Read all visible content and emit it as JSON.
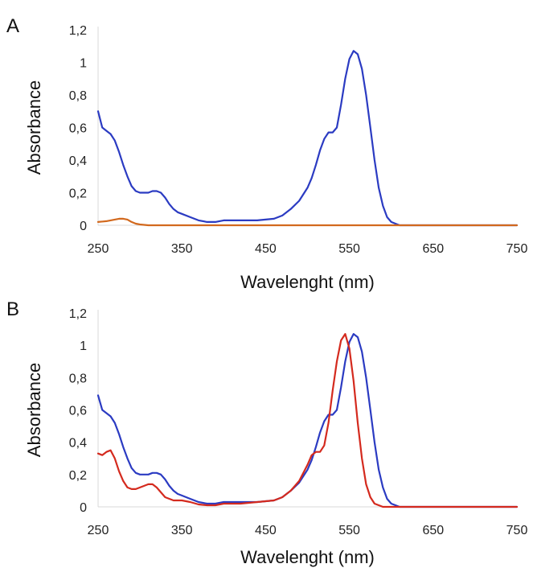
{
  "chart_data": [
    {
      "panel": "A",
      "type": "line",
      "xlabel": "Wavelenght (nm)",
      "ylabel": "Absorbance",
      "xlim": [
        250,
        750
      ],
      "ylim": [
        0,
        1.2
      ],
      "xticks": [
        "250",
        "350",
        "450",
        "550",
        "650",
        "750"
      ],
      "yticks": [
        "0",
        "0,2",
        "0,4",
        "0,6",
        "0,8",
        "1",
        "1,2"
      ],
      "grid": false,
      "series": [
        {
          "color": "#2b3bc2",
          "x": [
            250,
            255,
            260,
            265,
            270,
            275,
            280,
            285,
            290,
            295,
            300,
            305,
            310,
            315,
            320,
            325,
            330,
            335,
            340,
            345,
            350,
            360,
            370,
            380,
            390,
            400,
            420,
            440,
            460,
            470,
            480,
            490,
            500,
            505,
            510,
            515,
            520,
            525,
            530,
            535,
            540,
            545,
            550,
            555,
            560,
            565,
            570,
            575,
            580,
            585,
            590,
            595,
            600,
            605,
            610,
            620,
            650,
            700,
            750
          ],
          "y": [
            0.7,
            0.6,
            0.58,
            0.56,
            0.52,
            0.45,
            0.37,
            0.3,
            0.24,
            0.21,
            0.2,
            0.2,
            0.2,
            0.21,
            0.21,
            0.2,
            0.17,
            0.13,
            0.1,
            0.08,
            0.07,
            0.05,
            0.03,
            0.02,
            0.02,
            0.03,
            0.03,
            0.03,
            0.04,
            0.06,
            0.1,
            0.15,
            0.23,
            0.29,
            0.37,
            0.46,
            0.53,
            0.57,
            0.57,
            0.6,
            0.74,
            0.9,
            1.02,
            1.07,
            1.05,
            0.96,
            0.8,
            0.6,
            0.4,
            0.23,
            0.12,
            0.05,
            0.02,
            0.01,
            0.0,
            0.0,
            0.0,
            0.0,
            0.0
          ]
        },
        {
          "color": "#d2691e",
          "x": [
            250,
            260,
            270,
            275,
            280,
            285,
            290,
            295,
            300,
            310,
            350,
            450,
            550,
            650,
            750
          ],
          "y": [
            0.02,
            0.025,
            0.035,
            0.04,
            0.04,
            0.035,
            0.02,
            0.01,
            0.005,
            0.0,
            0.0,
            0.0,
            0.0,
            0.0,
            0.0
          ]
        }
      ]
    },
    {
      "panel": "B",
      "type": "line",
      "xlabel": "Wavelenght (nm)",
      "ylabel": "Absorbance",
      "xlim": [
        250,
        750
      ],
      "ylim": [
        0,
        1.2
      ],
      "xticks": [
        "250",
        "350",
        "450",
        "550",
        "650",
        "750"
      ],
      "yticks": [
        "0",
        "0,2",
        "0,4",
        "0,6",
        "0,8",
        "1",
        "1,2"
      ],
      "grid": false,
      "series": [
        {
          "color": "#2b3bc2",
          "x": [
            250,
            255,
            260,
            265,
            270,
            275,
            280,
            285,
            290,
            295,
            300,
            305,
            310,
            315,
            320,
            325,
            330,
            335,
            340,
            345,
            350,
            360,
            370,
            380,
            390,
            400,
            420,
            440,
            460,
            470,
            480,
            490,
            500,
            505,
            510,
            515,
            520,
            525,
            530,
            535,
            540,
            545,
            550,
            555,
            560,
            565,
            570,
            575,
            580,
            585,
            590,
            595,
            600,
            605,
            610,
            620,
            650,
            700,
            750
          ],
          "y": [
            0.69,
            0.6,
            0.58,
            0.56,
            0.52,
            0.45,
            0.37,
            0.3,
            0.24,
            0.21,
            0.2,
            0.2,
            0.2,
            0.21,
            0.21,
            0.2,
            0.17,
            0.13,
            0.1,
            0.08,
            0.07,
            0.05,
            0.03,
            0.02,
            0.02,
            0.03,
            0.03,
            0.03,
            0.04,
            0.06,
            0.1,
            0.15,
            0.23,
            0.29,
            0.37,
            0.46,
            0.53,
            0.57,
            0.57,
            0.6,
            0.74,
            0.9,
            1.02,
            1.07,
            1.05,
            0.96,
            0.8,
            0.6,
            0.4,
            0.23,
            0.12,
            0.05,
            0.02,
            0.01,
            0.0,
            0.0,
            0.0,
            0.0,
            0.0
          ]
        },
        {
          "color": "#d42a1e",
          "x": [
            250,
            255,
            260,
            265,
            270,
            275,
            280,
            285,
            290,
            295,
            300,
            305,
            310,
            315,
            320,
            325,
            330,
            340,
            350,
            360,
            370,
            380,
            390,
            400,
            420,
            440,
            460,
            470,
            480,
            490,
            500,
            505,
            510,
            515,
            520,
            525,
            530,
            535,
            540,
            545,
            550,
            555,
            560,
            565,
            570,
            575,
            580,
            585,
            590,
            600,
            650,
            700,
            750
          ],
          "y": [
            0.33,
            0.32,
            0.34,
            0.35,
            0.3,
            0.22,
            0.16,
            0.12,
            0.11,
            0.11,
            0.12,
            0.13,
            0.14,
            0.14,
            0.12,
            0.09,
            0.06,
            0.04,
            0.04,
            0.03,
            0.015,
            0.01,
            0.01,
            0.02,
            0.02,
            0.03,
            0.04,
            0.06,
            0.1,
            0.16,
            0.26,
            0.32,
            0.34,
            0.34,
            0.38,
            0.52,
            0.72,
            0.9,
            1.03,
            1.07,
            0.98,
            0.78,
            0.52,
            0.3,
            0.14,
            0.06,
            0.02,
            0.01,
            0.0,
            0.0,
            0.0,
            0.0,
            0.0
          ]
        }
      ]
    }
  ]
}
